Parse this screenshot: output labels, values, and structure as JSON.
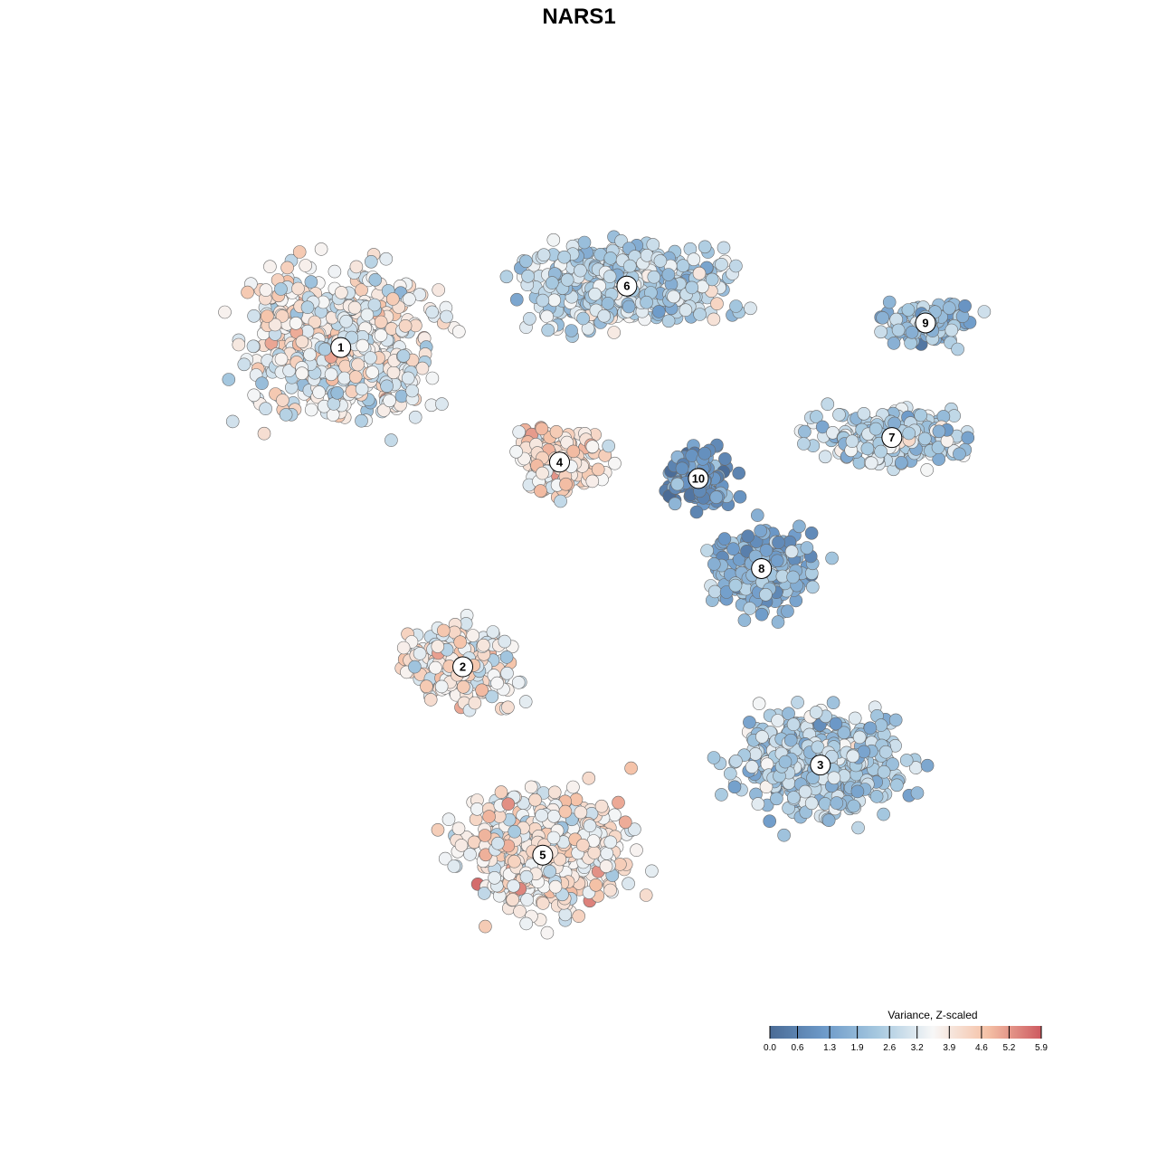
{
  "chart_data": {
    "type": "scatter",
    "title": "NARS1",
    "xlabel": "",
    "ylabel": "",
    "xlim": [
      0,
      1
    ],
    "ylim": [
      0,
      1
    ],
    "grid": false,
    "legend": {
      "title": "Variance, Z-scaled",
      "placement": "bottom-right",
      "range": [
        0.0,
        5.9
      ],
      "ticks": [
        0.0,
        0.6,
        1.3,
        1.9,
        2.6,
        3.2,
        3.9,
        4.6,
        5.2,
        5.9
      ],
      "tick_labels": [
        "0.0",
        "0.6",
        "1.3",
        "1.9",
        "2.6",
        "3.2",
        "3.9",
        "4.6",
        "5.2",
        "5.9"
      ],
      "colors": [
        "#4a6b96",
        "#6d9ac9",
        "#a7c9e0",
        "#f7f7f7",
        "#f5c2a7",
        "#cd5a60"
      ]
    },
    "clusters": [
      {
        "label": "1",
        "x": 0.19,
        "y": 0.78,
        "mean_value": 3.5
      },
      {
        "label": "2",
        "x": 0.335,
        "y": 0.39,
        "mean_value": 3.6
      },
      {
        "label": "3",
        "x": 0.76,
        "y": 0.27,
        "mean_value": 2.4
      },
      {
        "label": "4",
        "x": 0.45,
        "y": 0.64,
        "mean_value": 4.0
      },
      {
        "label": "5",
        "x": 0.43,
        "y": 0.16,
        "mean_value": 3.8
      },
      {
        "label": "6",
        "x": 0.53,
        "y": 0.855,
        "mean_value": 2.7
      },
      {
        "label": "7",
        "x": 0.845,
        "y": 0.67,
        "mean_value": 2.8
      },
      {
        "label": "8",
        "x": 0.69,
        "y": 0.51,
        "mean_value": 1.9
      },
      {
        "label": "9",
        "x": 0.885,
        "y": 0.81,
        "mean_value": 2.2
      },
      {
        "label": "10",
        "x": 0.615,
        "y": 0.62,
        "mean_value": 1.2
      }
    ]
  }
}
